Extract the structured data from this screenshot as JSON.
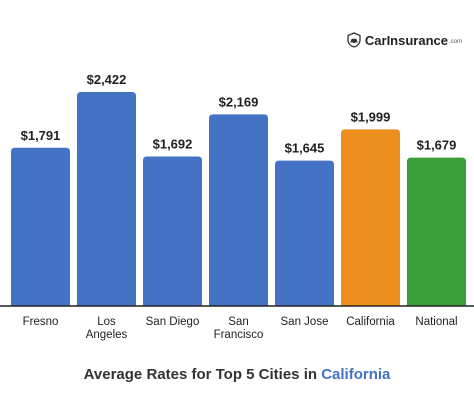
{
  "logo": {
    "text": "CarInsurance",
    "suffix": ".com",
    "icon": "car-shield-icon"
  },
  "title": {
    "prefix": "Average Rates for Top 5 Cities in ",
    "accent": "California"
  },
  "colors": {
    "city": "#4472c4",
    "state": "#ec8f1f",
    "national": "#3a9f3a",
    "axis": "#222222",
    "accent": "#4472c4"
  },
  "chart_data": {
    "type": "bar",
    "title": "Average Rates for Top 5 Cities in California",
    "xlabel": "",
    "ylabel": "",
    "ylim": [
      0,
      2422
    ],
    "grid": false,
    "legend": "none",
    "categories": [
      [
        "Fresno"
      ],
      [
        "Los",
        "Angeles"
      ],
      [
        "San Diego"
      ],
      [
        "San",
        "Francisco"
      ],
      [
        "San Jose"
      ],
      [
        "California"
      ],
      [
        "National"
      ]
    ],
    "values": [
      1791,
      2422,
      1692,
      2169,
      1645,
      1999,
      1679
    ],
    "value_labels": [
      "$1,791",
      "$2,422",
      "$1,692",
      "$2,169",
      "$1,645",
      "$1,999",
      "$1,679"
    ],
    "bar_colors": [
      "#4472c4",
      "#4472c4",
      "#4472c4",
      "#4472c4",
      "#4472c4",
      "#ec8f1f",
      "#3a9f3a"
    ]
  }
}
